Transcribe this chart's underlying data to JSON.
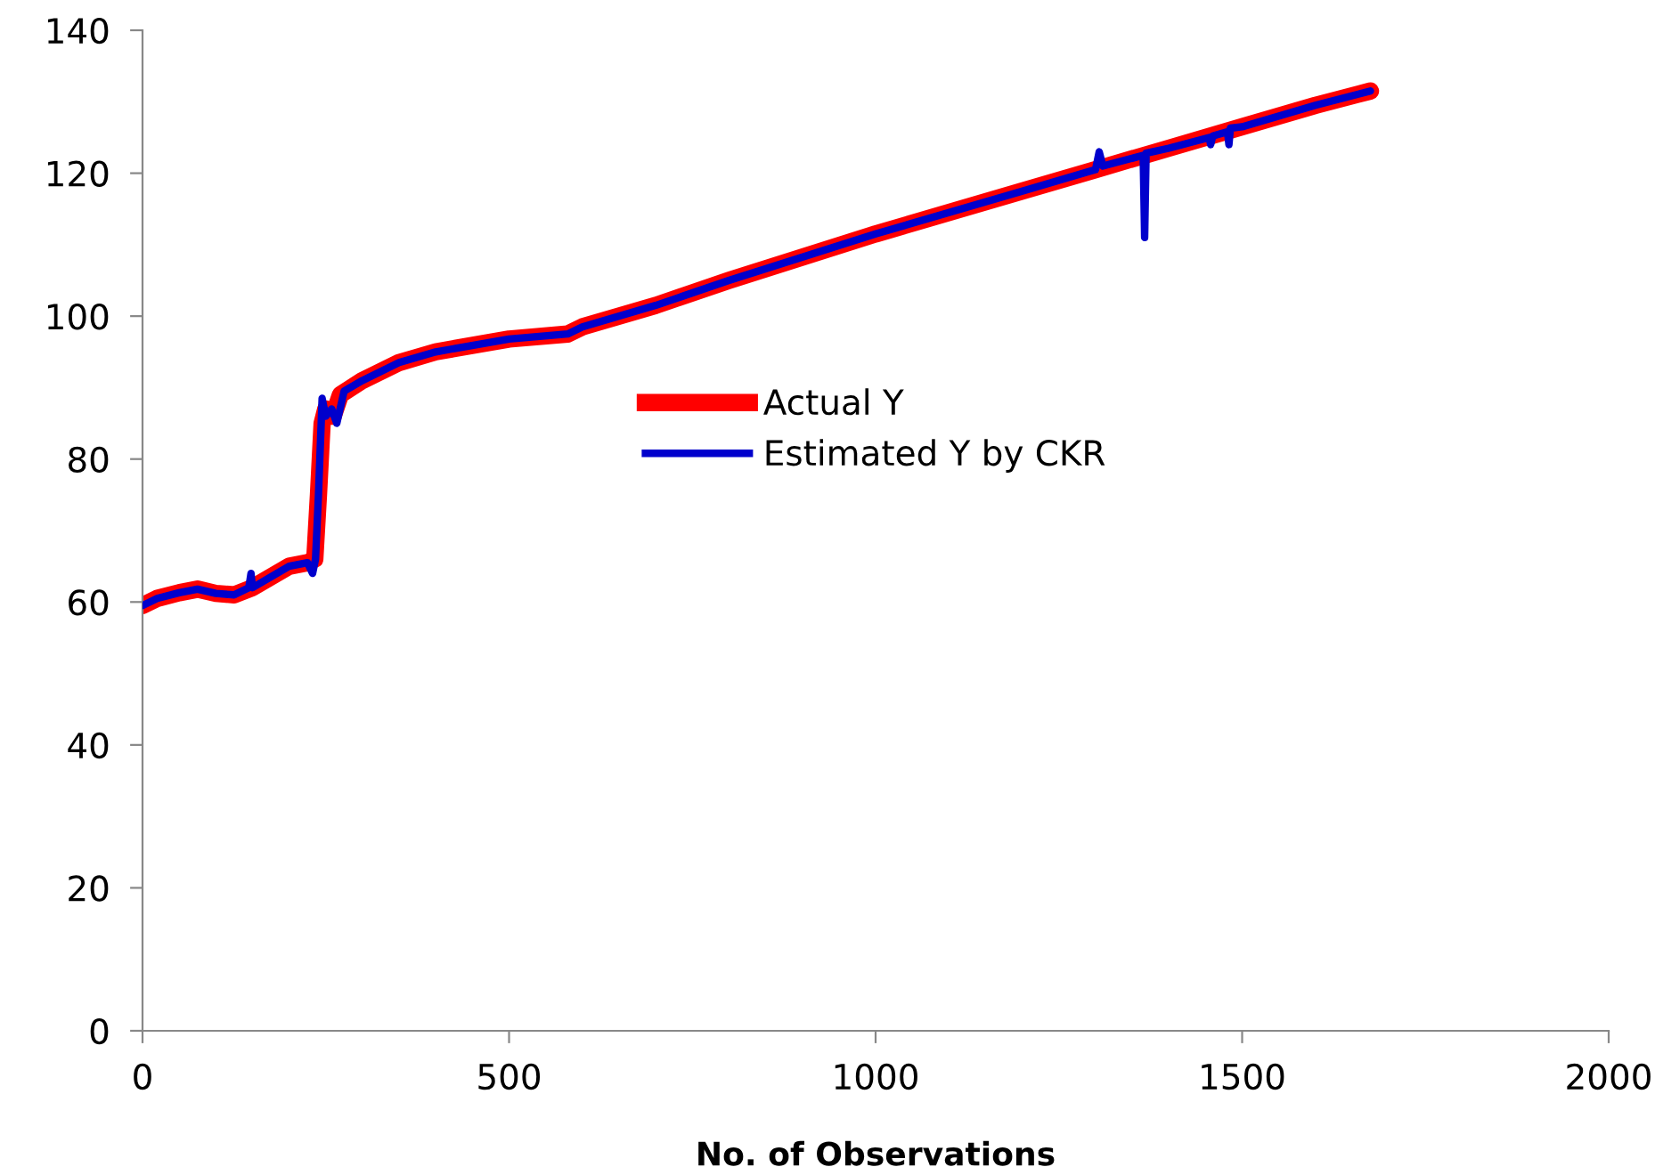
{
  "chart_data": {
    "type": "line",
    "xlabel": "No. of Observations",
    "xlim": [
      0,
      2000
    ],
    "xticks": [
      0,
      500,
      1000,
      1500,
      2000
    ],
    "ylim": [
      0,
      140
    ],
    "yticks": [
      0,
      20,
      40,
      60,
      80,
      100,
      120,
      140
    ],
    "grid": false,
    "legend": "center",
    "marker": "none",
    "line_style": "solid",
    "series": [
      {
        "name": "Actual Y",
        "color": "#ff0000",
        "x": [
          0,
          20,
          50,
          75,
          100,
          125,
          150,
          175,
          200,
          225,
          235,
          240,
          245,
          250,
          260,
          270,
          300,
          350,
          400,
          500,
          580,
          600,
          700,
          800,
          1000,
          1200,
          1300,
          1400,
          1500,
          1600,
          1675
        ],
        "values": [
          59.5,
          60.5,
          61.3,
          61.8,
          61.2,
          61,
          62,
          63.5,
          65,
          65.5,
          66,
          75,
          85,
          87,
          86,
          89,
          91,
          93.5,
          95,
          96.8,
          97.5,
          98.5,
          101.5,
          105,
          111.5,
          117.5,
          120.5,
          123.5,
          126.5,
          129.5,
          131.5
        ]
      },
      {
        "name": "Estimated Y by CKR",
        "color": "#0000cc",
        "x": [
          0,
          20,
          50,
          75,
          100,
          125,
          145,
          148,
          150,
          175,
          200,
          225,
          232,
          236,
          240,
          245,
          250,
          258,
          265,
          275,
          300,
          350,
          400,
          500,
          580,
          600,
          700,
          800,
          1000,
          1200,
          1300,
          1305,
          1310,
          1365,
          1367,
          1369,
          1400,
          1455,
          1457,
          1460,
          1480,
          1482,
          1484,
          1500,
          1600,
          1675
        ],
        "values": [
          59.5,
          60.5,
          61.3,
          61.8,
          61.2,
          61,
          62,
          64,
          62,
          63.5,
          65,
          65.5,
          64,
          66,
          75,
          88.5,
          86,
          87,
          85,
          89.5,
          91,
          93.5,
          95,
          96.8,
          97.5,
          98.5,
          101.5,
          105,
          111.5,
          117.5,
          120.5,
          123,
          121,
          122.5,
          111,
          122.8,
          123.5,
          125,
          124,
          125.2,
          125.8,
          124,
          126.3,
          126.5,
          129.5,
          131.5
        ]
      }
    ]
  }
}
